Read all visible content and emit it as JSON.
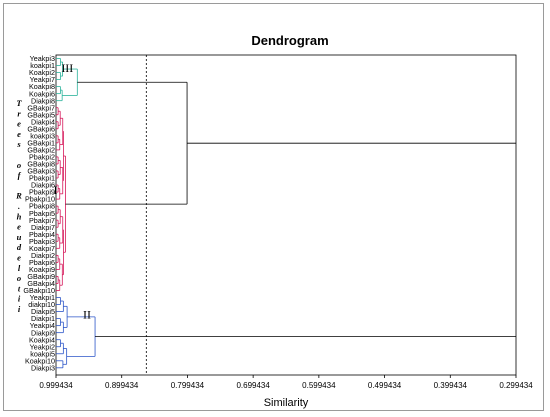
{
  "chart_data": {
    "type": "dendrogram",
    "title": "Dendrogram",
    "xlabel": "Similarity",
    "ylabel": "Trees of R. heudelotii",
    "ylabel_chars": [
      "T",
      "r",
      "e",
      "e",
      "s",
      "",
      "o",
      "f",
      "",
      "R",
      ".",
      "h",
      "e",
      "u",
      "d",
      "e",
      "l",
      "o",
      "t",
      "i",
      "i"
    ],
    "xlim": [
      0.999434,
      0.299434
    ],
    "xticks": [
      "0.999434",
      "0.899434",
      "0.799434",
      "0.699434",
      "0.599434",
      "0.499434",
      "0.399434",
      "0.299434"
    ],
    "xtick_values": [
      0.999434,
      0.899434,
      0.799434,
      0.699434,
      0.599434,
      0.499434,
      0.399434,
      0.299434
    ],
    "cut_line": 0.862,
    "leaves": [
      "Yeakpi3",
      "koakpi1",
      "Koakpi2",
      "Yeakpi7",
      "Koakpi8",
      "Koakpi6",
      "Diakpi8",
      "GBakpi7",
      "GBakpi5",
      "Diakpi4",
      "GBakpi6",
      "koakpi3",
      "GBakpi1",
      "GBakpi2",
      "Pbakpi2",
      "GBakpi8",
      "GBakpi3",
      "Pbakpi1",
      "Diakpi6",
      "Pbakpi9",
      "Pbakpi10",
      "Pbakpi8",
      "Pbakpi5",
      "Pbakpi7",
      "Diakpi7",
      "Pbakpi4",
      "Pbakpi3",
      "Koakpi7",
      "Diakpi2",
      "Pbakpi6",
      "Koakpi9",
      "GBakpi9",
      "GBakpi4",
      "GBakpi10",
      "Yeakpi1",
      "diakpi10",
      "Diakpi5",
      "Diakpi1",
      "Yeakpi4",
      "Diakpi9",
      "Koakpi4",
      "Yeakpi2",
      "koakpi5",
      "Koakpi10",
      "Diakpi3"
    ],
    "clusters": [
      {
        "label": "III",
        "color": "#2bb39b",
        "leaf_range": [
          0,
          6
        ],
        "height": 0.967
      },
      {
        "label": "I",
        "color": "#d6185a",
        "leaf_range": [
          7,
          33
        ],
        "height": 0.985
      },
      {
        "label": "II",
        "color": "#2b55c8",
        "leaf_range": [
          34,
          44
        ],
        "height": 0.94
      }
    ],
    "merges": [
      {
        "a": "III",
        "b": "I",
        "height": 0.8
      },
      {
        "a": "III+I",
        "b": "II",
        "height": 0.299434
      }
    ]
  }
}
